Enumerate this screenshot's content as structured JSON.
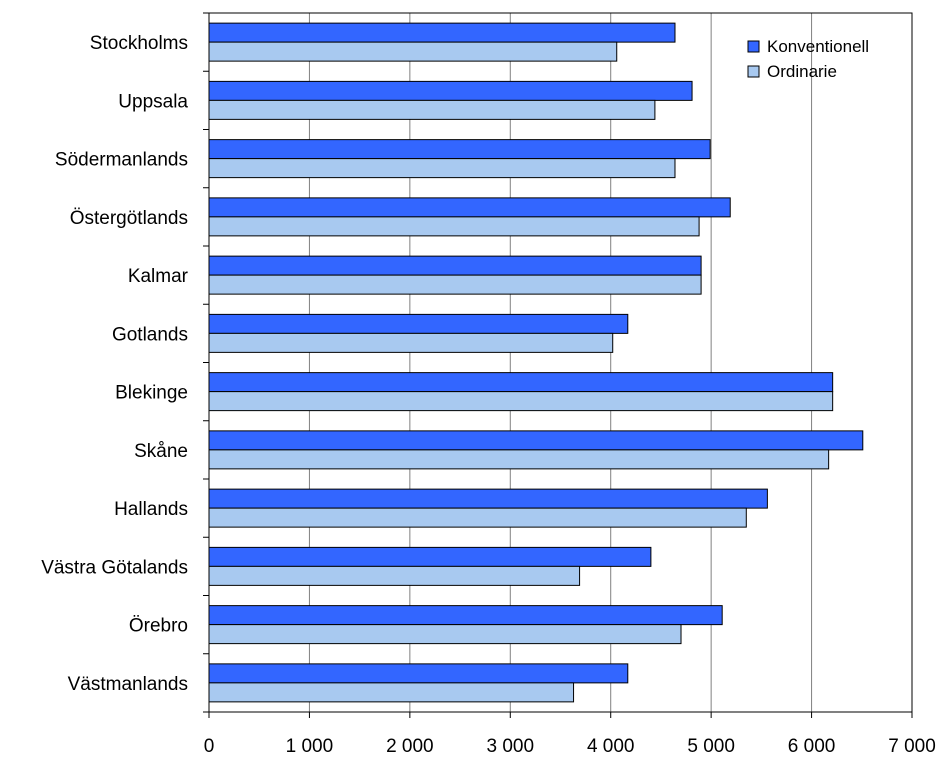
{
  "chart_data": {
    "type": "bar",
    "orientation": "horizontal",
    "categories": [
      "Stockholms",
      "Uppsala",
      "Södermanlands",
      "Östergötlands",
      "Kalmar",
      "Gotlands",
      "Blekinge",
      "Skåne",
      "Hallands",
      "Västra Götalands",
      "Örebro",
      "Västmanlands"
    ],
    "series": [
      {
        "name": "Konventionell",
        "color": "#3366ff",
        "values": [
          4640,
          4810,
          4990,
          5190,
          4900,
          4170,
          6210,
          6510,
          5560,
          4400,
          5110,
          4170
        ]
      },
      {
        "name": "Ordinarie",
        "color": "#a8c9f0",
        "values": [
          4060,
          4440,
          4640,
          4880,
          4900,
          4020,
          6210,
          6170,
          5350,
          3690,
          4700,
          3630
        ]
      }
    ],
    "xlim": [
      0,
      7000
    ],
    "xticks": [
      0,
      1000,
      2000,
      3000,
      4000,
      5000,
      6000,
      7000
    ],
    "xtick_labels": [
      "0",
      "1 000",
      "2 000",
      "3 000",
      "4 000",
      "5 000",
      "6 000",
      "7 000"
    ],
    "grid": "vertical",
    "legend_position": "top-right"
  }
}
